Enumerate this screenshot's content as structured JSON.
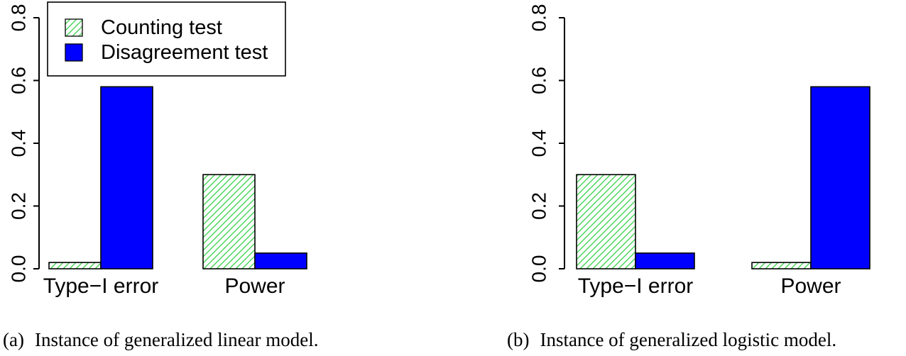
{
  "figure": {
    "background": "#ffffff"
  },
  "colors": {
    "solid_blue": "#0000FF",
    "hatch_line_green": "#44D455",
    "hatch_background": "#ffffff",
    "bar_border": "#000000",
    "axis": "#000000",
    "text": "#000000"
  },
  "chart_data": [
    {
      "type": "bar",
      "title": "",
      "xlabel": "",
      "ylabel": "",
      "categories": [
        "Type−I error",
        "Power"
      ],
      "series": [
        {
          "name": "Counting test",
          "style": "green-hatch",
          "values": [
            0.02,
            0.3
          ]
        },
        {
          "name": "Disagreement test",
          "style": "solid-blue",
          "values": [
            0.58,
            0.05
          ]
        }
      ],
      "ylim": [
        0,
        0.8
      ],
      "yticks": [
        0.0,
        0.2,
        0.4,
        0.6,
        0.8
      ],
      "ytick_labels": [
        "0.0",
        "0.2",
        "0.4",
        "0.6",
        "0.8"
      ],
      "grid": false,
      "show_legend": true,
      "legend_position": "top-left",
      "caption": {
        "tag": "(a)",
        "text": "Instance of generalized linear model."
      }
    },
    {
      "type": "bar",
      "title": "",
      "xlabel": "",
      "ylabel": "",
      "categories": [
        "Type−I error",
        "Power"
      ],
      "series": [
        {
          "name": "Counting test",
          "style": "green-hatch",
          "values": [
            0.3,
            0.02
          ]
        },
        {
          "name": "Disagreement test",
          "style": "solid-blue",
          "values": [
            0.05,
            0.58
          ]
        }
      ],
      "ylim": [
        0,
        0.8
      ],
      "yticks": [
        0.0,
        0.2,
        0.4,
        0.6,
        0.8
      ],
      "ytick_labels": [
        "0.0",
        "0.2",
        "0.4",
        "0.6",
        "0.8"
      ],
      "grid": false,
      "show_legend": false,
      "legend_position": "none",
      "caption": {
        "tag": "(b)",
        "text": "Instance of generalized logistic model."
      }
    }
  ]
}
